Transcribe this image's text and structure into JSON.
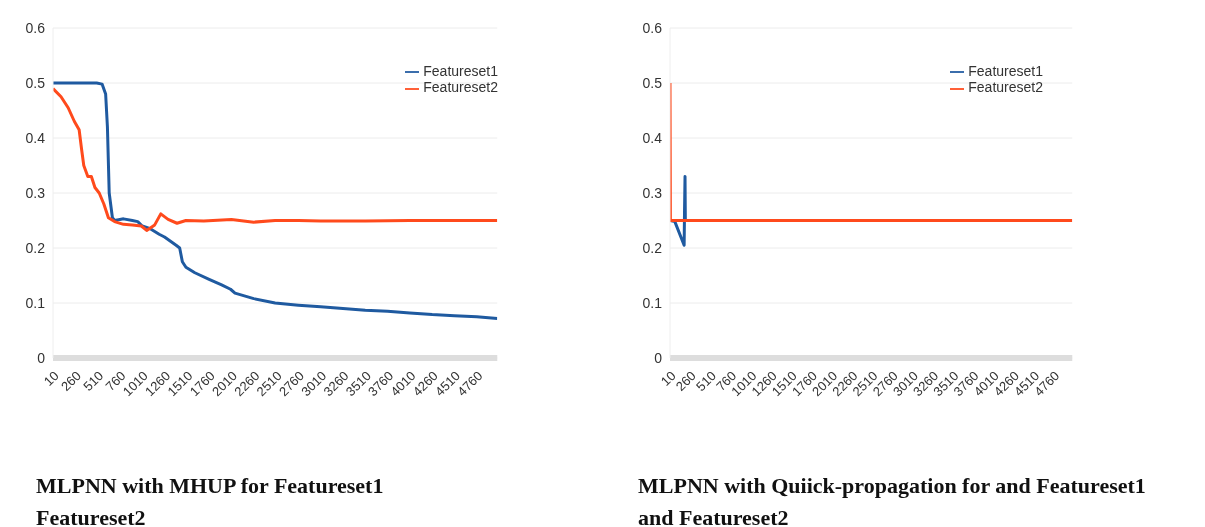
{
  "chart_data": [
    {
      "type": "line",
      "title": "MLPNN with MHUP for Featureset1 Featureset2",
      "xlim": [
        10,
        4990
      ],
      "xticks": [
        10,
        260,
        510,
        760,
        1010,
        1260,
        1510,
        1760,
        2010,
        2260,
        2510,
        2760,
        3010,
        3260,
        3510,
        3760,
        4010,
        4260,
        4510,
        4760
      ],
      "ylim": [
        0,
        0.6
      ],
      "yticks": [
        0,
        0.1,
        0.2,
        0.3,
        0.4,
        0.5,
        0.6
      ],
      "grid": "y",
      "legend": "top right",
      "series": [
        {
          "name": "Featureset1",
          "color": "#1f5aa0",
          "x": [
            10,
            500,
            560,
            600,
            620,
            640,
            676,
            700,
            760,
            800,
            900,
            960,
            1010,
            1100,
            1200,
            1260,
            1390,
            1430,
            1460,
            1500,
            1600,
            1760,
            1900,
            2000,
            2050,
            2260,
            2500,
            2760,
            3010,
            3260,
            3510,
            3760,
            4010,
            4260,
            4510,
            4760,
            4990
          ],
          "values": [
            0.5,
            0.5,
            0.498,
            0.48,
            0.42,
            0.3,
            0.255,
            0.25,
            0.252,
            0.253,
            0.25,
            0.248,
            0.24,
            0.235,
            0.225,
            0.22,
            0.205,
            0.2,
            0.175,
            0.165,
            0.155,
            0.143,
            0.133,
            0.125,
            0.118,
            0.108,
            0.1,
            0.096,
            0.093,
            0.09,
            0.087,
            0.085,
            0.082,
            0.079,
            0.077,
            0.075,
            0.072
          ]
        },
        {
          "name": "Featureset2",
          "color": "#ff4a1c",
          "x": [
            10,
            100,
            180,
            250,
            303,
            330,
            355,
            400,
            440,
            480,
            528,
            580,
            631,
            700,
            800,
            900,
            1000,
            1060,
            1150,
            1218,
            1300,
            1400,
            1500,
            1700,
            2010,
            2260,
            2500,
            2760,
            3010,
            3510,
            4010,
            4990
          ],
          "values": [
            0.49,
            0.475,
            0.455,
            0.43,
            0.415,
            0.38,
            0.35,
            0.33,
            0.33,
            0.31,
            0.3,
            0.28,
            0.255,
            0.248,
            0.243,
            0.242,
            0.24,
            0.232,
            0.242,
            0.262,
            0.252,
            0.245,
            0.25,
            0.249,
            0.252,
            0.247,
            0.25,
            0.25,
            0.249,
            0.249,
            0.25,
            0.25
          ]
        }
      ]
    },
    {
      "type": "line",
      "title": "MLPNN with Quiick-propagation  for and Featureset1 and Featureset2",
      "xlim": [
        10,
        4990
      ],
      "xticks": [
        10,
        260,
        510,
        760,
        1010,
        1260,
        1510,
        1760,
        2010,
        2260,
        2510,
        2760,
        3010,
        3260,
        3510,
        3760,
        4010,
        4260,
        4510,
        4760
      ],
      "ylim": [
        0,
        0.6
      ],
      "yticks": [
        0,
        0.1,
        0.2,
        0.3,
        0.4,
        0.5,
        0.6
      ],
      "grid": "y",
      "legend": "top right",
      "series": [
        {
          "name": "Featureset1",
          "color": "#1f5aa0",
          "x": [
            10,
            70,
            185,
            190,
            196,
            200
          ],
          "values": [
            0.25,
            0.248,
            0.205,
            0.27,
            0.33,
            0.25
          ]
        },
        {
          "name": "Featureset2",
          "color": "#ff4a1c",
          "x": [
            10,
            15,
            4990
          ],
          "values": [
            0.5,
            0.25,
            0.25
          ]
        }
      ]
    }
  ]
}
